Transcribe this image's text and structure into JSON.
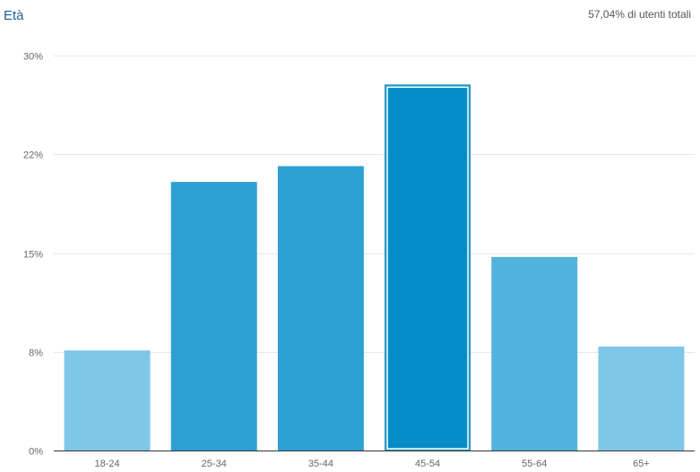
{
  "header": {
    "title": "Età",
    "subtitle": "57,04% di utenti totali"
  },
  "chart_data": {
    "type": "bar",
    "title": "Età",
    "subtitle": "57,04% di utenti totali",
    "categories": [
      "18-24",
      "25-34",
      "35-44",
      "45-54",
      "55-64",
      "65+"
    ],
    "values": [
      7.6,
      20.4,
      21.6,
      27.8,
      14.7,
      7.9
    ],
    "ylim": [
      0,
      30
    ],
    "ytick_labels": [
      "0%",
      "8%",
      "15%",
      "22%",
      "30%"
    ],
    "ytick_values": [
      0,
      7.5,
      15,
      22.5,
      30
    ],
    "grid": true,
    "legend": "none",
    "highlighted_category": "45-54",
    "colors": [
      "#7fc7e8",
      "#2e9fd3",
      "#2e9fd3",
      "#058dc7",
      "#50b4dc",
      "#7fc7e8"
    ],
    "highlight_outline": "#2a9cc2"
  }
}
